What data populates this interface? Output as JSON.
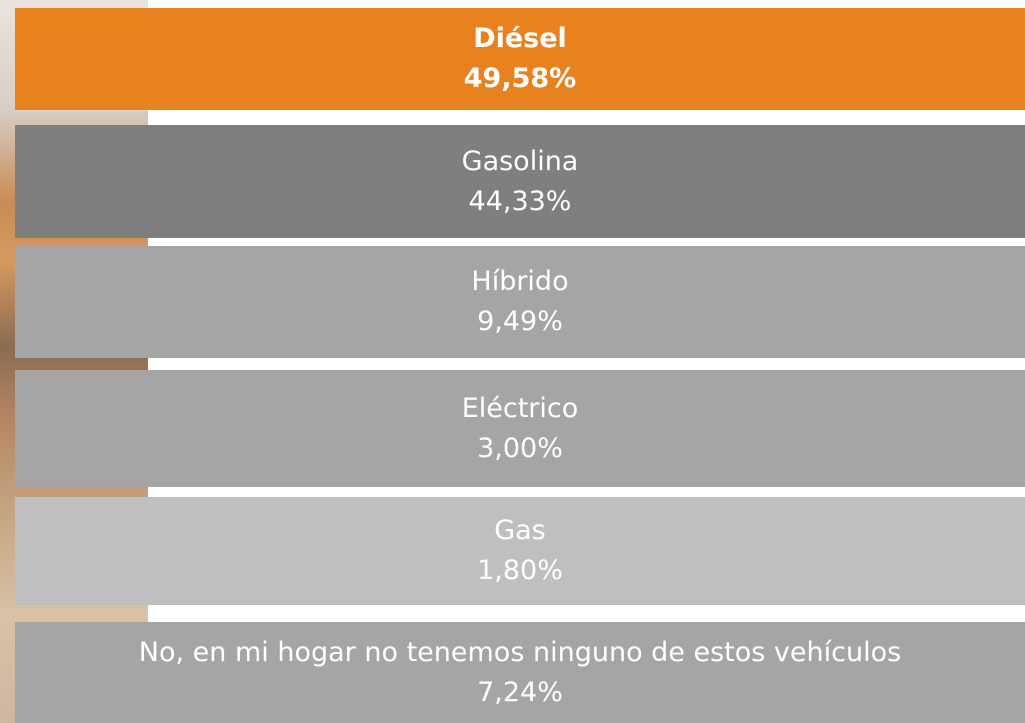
{
  "items": [
    {
      "label": "Diésel",
      "value": "49,58%"
    },
    {
      "label": "Gasolina",
      "value": "44,33%"
    },
    {
      "label": "Híbrido",
      "value": "9,49%"
    },
    {
      "label": "Eléctrico",
      "value": "3,00%"
    },
    {
      "label": "Gas",
      "value": "1,80%"
    },
    {
      "label": "No, en mi hogar no tenemos ninguno de estos vehículos",
      "value": "7,24%"
    }
  ]
}
